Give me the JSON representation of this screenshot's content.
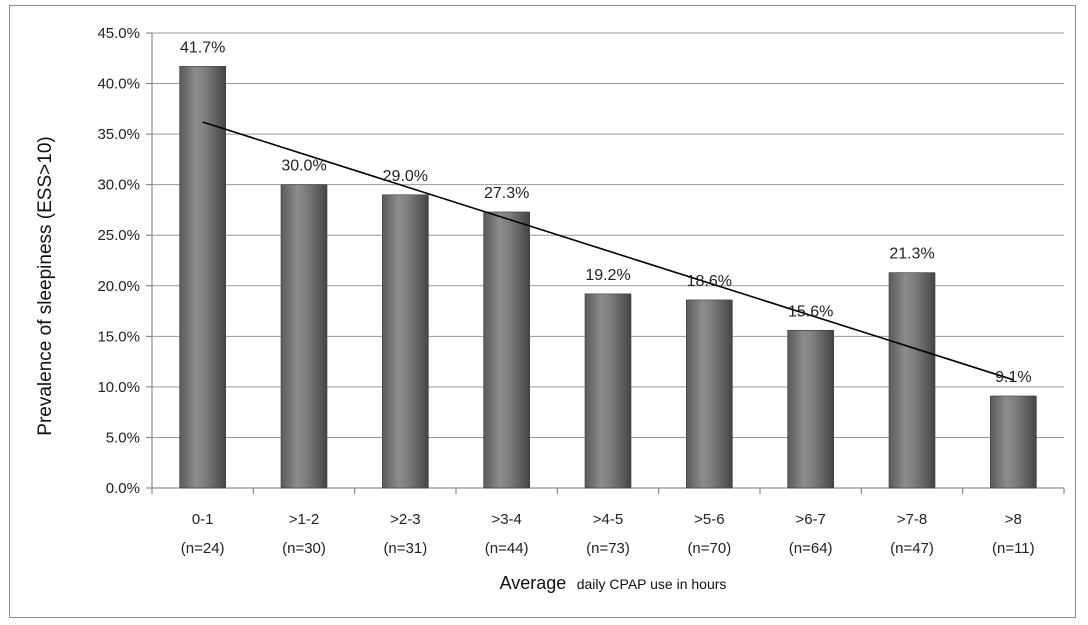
{
  "chart_data": {
    "type": "bar",
    "categories": [
      "0-1",
      ">1-2",
      ">2-3",
      ">3-4",
      ">4-5",
      ">5-6",
      ">6-7",
      ">7-8",
      ">8"
    ],
    "sample_sizes": [
      "(n=24)",
      "(n=30)",
      "(n=31)",
      "(n=44)",
      "(n=73)",
      "(n=70)",
      "(n=64)",
      "(n=47)",
      "(n=11)"
    ],
    "values": [
      41.7,
      30.0,
      29.0,
      27.3,
      19.2,
      18.6,
      15.6,
      21.3,
      9.1
    ],
    "data_labels": [
      "41.7%",
      "30.0%",
      "29.0%",
      "27.3%",
      "19.2%",
      "18.6%",
      "15.6%",
      "21.3%",
      "9.1%"
    ],
    "ylabel": "Prevalence of sleepiness (ESS>10)",
    "xlabel_main": "Average",
    "xlabel_rest": "daily CPAP use in hours",
    "ylim": [
      0,
      45
    ],
    "yticks": [
      "0.0%",
      "5.0%",
      "10.0%",
      "15.0%",
      "20.0%",
      "25.0%",
      "30.0%",
      "35.0%",
      "40.0%",
      "45.0%"
    ],
    "trendline": {
      "type": "linear",
      "start": 36.2,
      "end": 10.7
    },
    "grid": true,
    "colors": {
      "bar": "#7a7a7a",
      "bar_dark": "#4a4a4a",
      "grid": "#9a9a9a",
      "trend": "#000000"
    }
  }
}
